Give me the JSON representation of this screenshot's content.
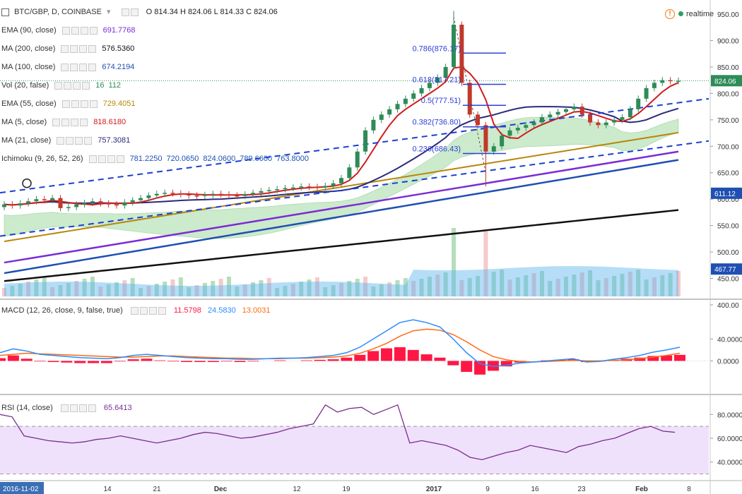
{
  "header": {
    "symbol": "BTC/GBP, D, COINBASE",
    "ohlc": "O 814.34  H 824.06  L 814.33  C 824.06",
    "realtime": "realtime"
  },
  "colors": {
    "up": "#2e8b57",
    "down": "#c0392b",
    "ema90": "#7b2cd6",
    "ma200": "#111111",
    "ma100": "#1f4fb3",
    "ema55": "#b8860b",
    "ma5": "#d11b1b",
    "ma21": "#2a2a7a",
    "kumo_up": "#8fd18f",
    "kumo_dn": "#f0a5a5",
    "macd": "#2b8cff",
    "signal": "#ff6a13",
    "hist": "#ff1744",
    "rsi": "#7a2e8e",
    "rsi_band": "#efe1fb"
  },
  "indicators": [
    {
      "name": "EMA (90, close)",
      "values": [
        "691.7768"
      ],
      "color": "#7b2cd6"
    },
    {
      "name": "MA (200, close)",
      "values": [
        "576.5360"
      ],
      "color": "#111111"
    },
    {
      "name": "MA (100, close)",
      "values": [
        "674.2194"
      ],
      "color": "#1f4fb3"
    },
    {
      "name": "Vol (20, false)",
      "values": [
        "16",
        "112"
      ],
      "color": "#2e8b57"
    },
    {
      "name": "EMA (55, close)",
      "values": [
        "729.4051"
      ],
      "color": "#b8860b"
    },
    {
      "name": "MA (5, close)",
      "values": [
        "818.6180"
      ],
      "color": "#d11b1b"
    },
    {
      "name": "MA (21, close)",
      "values": [
        "757.3081"
      ],
      "color": "#2a2a7a"
    },
    {
      "name": "Ichimoku (9, 26, 52, 26)",
      "values": [
        "781.2250",
        "720.0650",
        "824.0600",
        "789.6600",
        "763.8000"
      ],
      "color": "#1f4fb3"
    }
  ],
  "macd_legend": {
    "name": "MACD (12, 26, close, 9, false, true)",
    "values": [
      "11.5798",
      "24.5830",
      "13.0031"
    ]
  },
  "rsi_legend": {
    "name": "RSI (14, close)",
    "values": [
      "65.6413"
    ]
  },
  "chart_data": [
    {
      "type": "candlestick",
      "title": "BTC/GBP, D, COINBASE",
      "ylim": [
        400,
        950
      ],
      "y_ticks": [
        "950.00",
        "900.00",
        "850.00",
        "800.00",
        "750.00",
        "700.00",
        "650.00",
        "600.00",
        "550.00",
        "500.00",
        "450.00",
        "400.00"
      ],
      "x_ticks": [
        "2016-11-02",
        "14",
        "21",
        "Dec",
        "12",
        "19",
        "2017",
        "9",
        "16",
        "23",
        "Feb",
        "8"
      ],
      "price_labels": [
        "824.06",
        "611.12",
        "467.77"
      ],
      "close": [
        590,
        588,
        592,
        596,
        600,
        598,
        602,
        583,
        585,
        590,
        593,
        596,
        592,
        590,
        588,
        594,
        598,
        602,
        607,
        610,
        612,
        611,
        609,
        607,
        606,
        608,
        610,
        609,
        607,
        606,
        609,
        612,
        615,
        617,
        619,
        621,
        622,
        624,
        623,
        622,
        625,
        630,
        640,
        660,
        690,
        730,
        750,
        760,
        770,
        780,
        790,
        800,
        810,
        820,
        830,
        850,
        930,
        820,
        760,
        740,
        690,
        700,
        720,
        730,
        735,
        740,
        745,
        755,
        760,
        765,
        770,
        775,
        760,
        745,
        740,
        745,
        750,
        755,
        770,
        790,
        810,
        820,
        825,
        823,
        824
      ],
      "fib": [
        {
          "label": "0.786(876.17)",
          "value": 876.17
        },
        {
          "label": "0.618(817.21)",
          "value": 817.21
        },
        {
          "label": "0.5(777.51)",
          "value": 777.51
        },
        {
          "label": "0.382(736.80)",
          "value": 736.8
        },
        {
          "label": "0.236(686.43)",
          "value": 686.43
        }
      ]
    },
    {
      "type": "line",
      "title": "MACD (12, 26, close, 9, false, true)",
      "y_ticks": [
        "40.0000",
        "0.0000"
      ],
      "ylim": [
        -60,
        110
      ],
      "macd": [
        15,
        22,
        18,
        12,
        10,
        8,
        6,
        5,
        4,
        6,
        10,
        12,
        10,
        8,
        6,
        5,
        4,
        4,
        3,
        3,
        4,
        5,
        5,
        6,
        8,
        10,
        15,
        25,
        40,
        55,
        70,
        75,
        70,
        62,
        40,
        15,
        -5,
        -10,
        -8,
        -4,
        -2,
        0,
        2,
        4,
        -2,
        -1,
        3,
        6,
        10,
        16,
        20,
        25
      ],
      "signal": [
        10,
        12,
        14,
        13,
        12,
        11,
        10,
        9,
        8,
        7,
        7,
        8,
        9,
        9,
        8,
        7,
        6,
        5,
        5,
        4,
        4,
        4,
        5,
        5,
        6,
        7,
        9,
        14,
        22,
        32,
        45,
        55,
        58,
        56,
        48,
        35,
        20,
        8,
        2,
        -1,
        -2,
        -1,
        0,
        1,
        0,
        0,
        1,
        2,
        4,
        7,
        10,
        14
      ],
      "hist": [
        5,
        10,
        4,
        -1,
        -2,
        -3,
        -4,
        -4,
        -4,
        -1,
        3,
        4,
        1,
        -1,
        -2,
        -2,
        -2,
        -1,
        -2,
        -1,
        0,
        1,
        0,
        1,
        2,
        3,
        6,
        11,
        18,
        23,
        25,
        20,
        12,
        6,
        -8,
        -20,
        -25,
        -18,
        -10,
        -3,
        0,
        1,
        2,
        3,
        -2,
        -1,
        2,
        4,
        6,
        9,
        10,
        11
      ]
    },
    {
      "type": "line",
      "title": "RSI (14, close)",
      "y_ticks": [
        "80.0000",
        "60.0000",
        "40.0000"
      ],
      "ylim": [
        25,
        95
      ],
      "bands": [
        70,
        30
      ],
      "values": [
        80,
        78,
        62,
        60,
        58,
        57,
        56,
        57,
        59,
        60,
        62,
        60,
        58,
        56,
        58,
        60,
        63,
        65,
        64,
        62,
        60,
        61,
        63,
        65,
        68,
        70,
        72,
        88,
        82,
        85,
        86,
        80,
        84,
        88,
        56,
        58,
        56,
        54,
        50,
        44,
        42,
        45,
        48,
        50,
        54,
        52,
        50,
        48,
        53,
        55,
        58,
        60,
        64,
        68,
        70,
        66,
        65
      ]
    }
  ]
}
